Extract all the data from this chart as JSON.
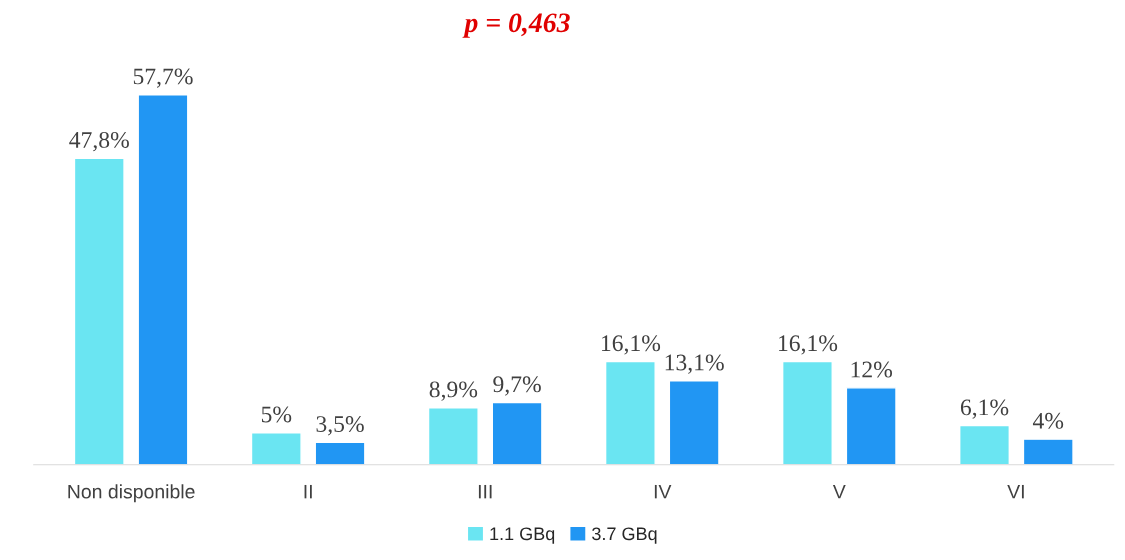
{
  "chart_data": {
    "type": "bar",
    "categories": [
      "Non disponible",
      "II",
      "III",
      "IV",
      "V",
      "VI"
    ],
    "series": [
      {
        "name": "1.1 GBq",
        "color": "#6ae5f2",
        "values": [
          47.8,
          5,
          8.9,
          16.1,
          16.1,
          6.1
        ],
        "value_labels": [
          "47,8%",
          "5%",
          "8,9%",
          "16,1%",
          "16,1%",
          "6,1%"
        ]
      },
      {
        "name": "3.7 GBq",
        "color": "#2196f3",
        "values": [
          57.7,
          3.5,
          9.7,
          13.1,
          12,
          4
        ],
        "value_labels": [
          "57,7%",
          "3,5%",
          "9,7%",
          "13,1%",
          "12%",
          "4%"
        ]
      }
    ],
    "annotations": [
      "p = 0,463"
    ],
    "legend": "bottom",
    "grid": false
  }
}
